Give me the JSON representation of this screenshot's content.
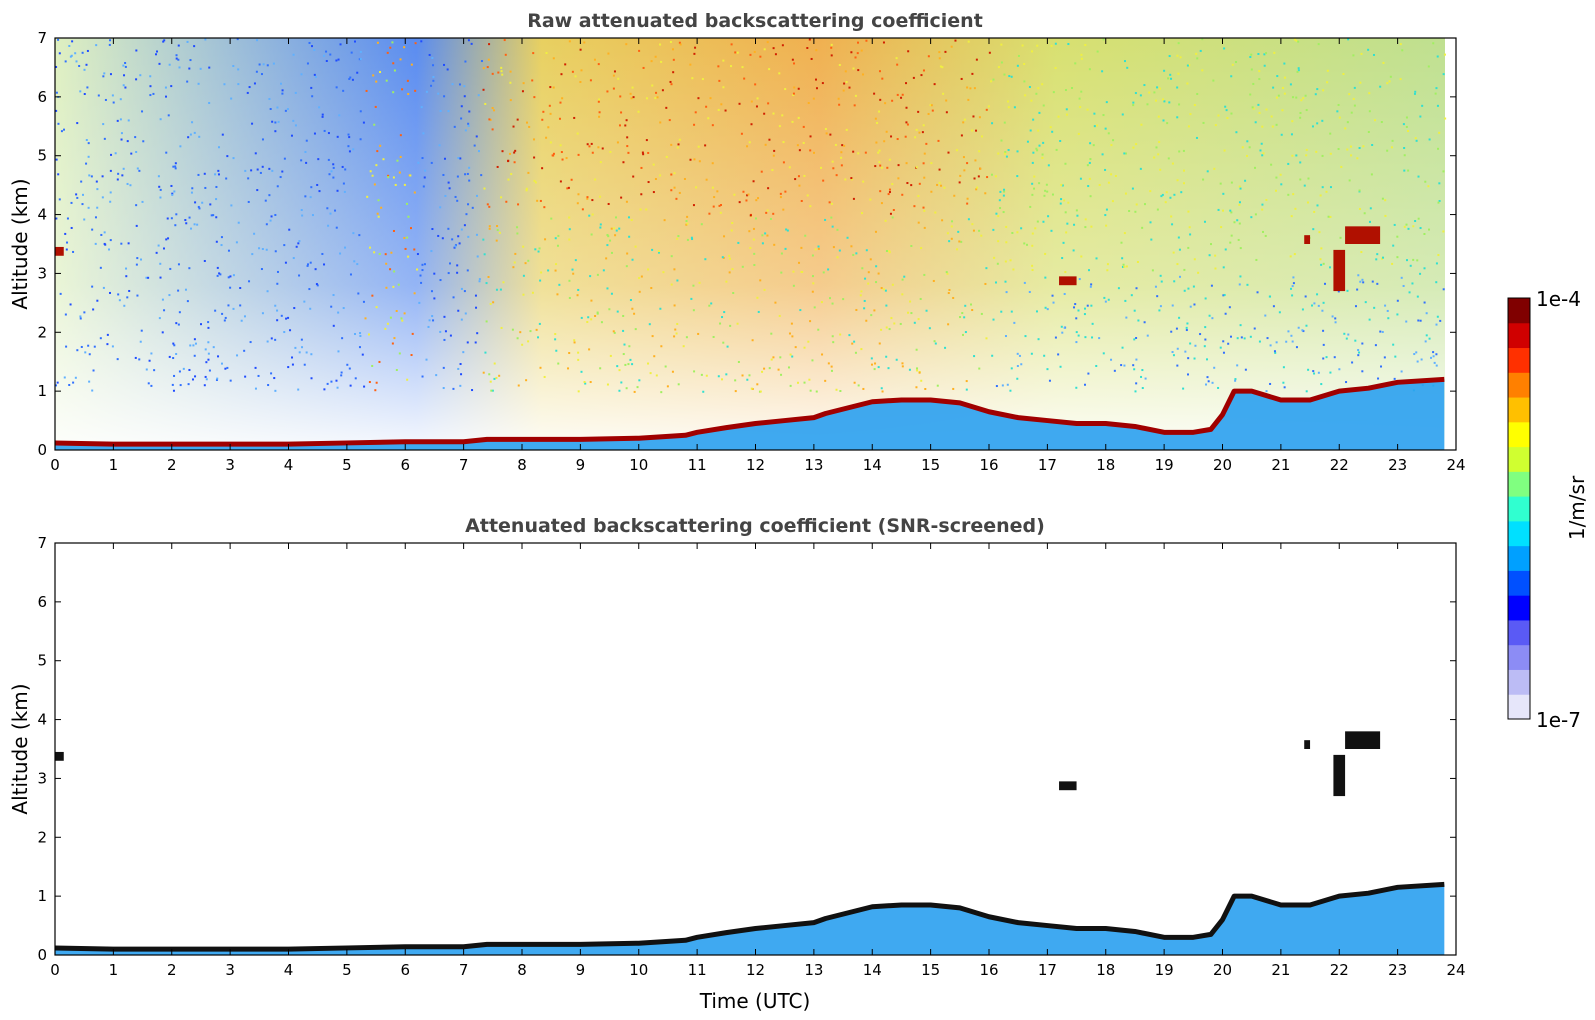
{
  "chart_data": [
    {
      "type": "heatmap",
      "title": "Raw attenuated backscattering coefficient",
      "xlabel": "",
      "ylabel": "Altitude (km)",
      "xlim": [
        0,
        24
      ],
      "ylim": [
        0,
        7
      ],
      "xticks": [
        0,
        1,
        2,
        3,
        4,
        5,
        6,
        7,
        8,
        9,
        10,
        11,
        12,
        13,
        14,
        15,
        16,
        17,
        18,
        19,
        20,
        21,
        22,
        23,
        24
      ],
      "yticks": [
        0,
        1,
        2,
        3,
        4,
        5,
        6,
        7
      ],
      "features": {
        "boundary_layer_top_km": [
          [
            0,
            0.12
          ],
          [
            1,
            0.1
          ],
          [
            2,
            0.1
          ],
          [
            3,
            0.1
          ],
          [
            4,
            0.1
          ],
          [
            5,
            0.12
          ],
          [
            6,
            0.14
          ],
          [
            7,
            0.14
          ],
          [
            7.4,
            0.18
          ],
          [
            8,
            0.18
          ],
          [
            9,
            0.18
          ],
          [
            10,
            0.2
          ],
          [
            10.8,
            0.25
          ],
          [
            11,
            0.3
          ],
          [
            11.5,
            0.38
          ],
          [
            12,
            0.45
          ],
          [
            12.5,
            0.5
          ],
          [
            13,
            0.55
          ],
          [
            13.2,
            0.62
          ],
          [
            14,
            0.82
          ],
          [
            14.5,
            0.85
          ],
          [
            15,
            0.85
          ],
          [
            15.5,
            0.8
          ],
          [
            16,
            0.65
          ],
          [
            16.5,
            0.55
          ],
          [
            17,
            0.5
          ],
          [
            17.5,
            0.45
          ],
          [
            18,
            0.45
          ],
          [
            18.5,
            0.4
          ],
          [
            19,
            0.3
          ],
          [
            19.5,
            0.3
          ],
          [
            19.8,
            0.35
          ],
          [
            20,
            0.6
          ],
          [
            20.2,
            1.0
          ],
          [
            20.5,
            1.0
          ],
          [
            21,
            0.85
          ],
          [
            21.5,
            0.85
          ],
          [
            22,
            1.0
          ],
          [
            22.5,
            1.05
          ],
          [
            23,
            1.15
          ],
          [
            23.8,
            1.2
          ]
        ],
        "cloud_patches_km": [
          {
            "x": [
              0,
              0.15
            ],
            "y": [
              3.3,
              3.45
            ]
          },
          {
            "x": [
              17.2,
              17.5
            ],
            "y": [
              2.8,
              2.95
            ]
          },
          {
            "x": [
              21.9,
              22.1
            ],
            "y": [
              2.7,
              3.4
            ]
          },
          {
            "x": [
              22.1,
              22.7
            ],
            "y": [
              3.5,
              3.8
            ]
          },
          {
            "x": [
              21.4,
              21.5
            ],
            "y": [
              3.5,
              3.65
            ]
          }
        ]
      }
    },
    {
      "type": "heatmap",
      "title": "Attenuated backscattering coefficient (SNR-screened)",
      "xlabel": "Time (UTC)",
      "ylabel": "Altitude (km)",
      "xlim": [
        0,
        24
      ],
      "ylim": [
        0,
        7
      ],
      "xticks": [
        0,
        1,
        2,
        3,
        4,
        5,
        6,
        7,
        8,
        9,
        10,
        11,
        12,
        13,
        14,
        15,
        16,
        17,
        18,
        19,
        20,
        21,
        22,
        23,
        24
      ],
      "yticks": [
        0,
        1,
        2,
        3,
        4,
        5,
        6,
        7
      ]
    }
  ],
  "colorbar": {
    "label": "1/m/sr",
    "max_label": "1e-4",
    "min_label": "1e-7",
    "colors": [
      "#e6e6fa",
      "#bcbcf5",
      "#8c8cf5",
      "#5a5af5",
      "#0000ff",
      "#0050ff",
      "#00a0ff",
      "#00e0ff",
      "#30ffd0",
      "#80ff80",
      "#d0ff30",
      "#ffff00",
      "#ffc000",
      "#ff8000",
      "#ff3000",
      "#d00000",
      "#800000"
    ]
  }
}
